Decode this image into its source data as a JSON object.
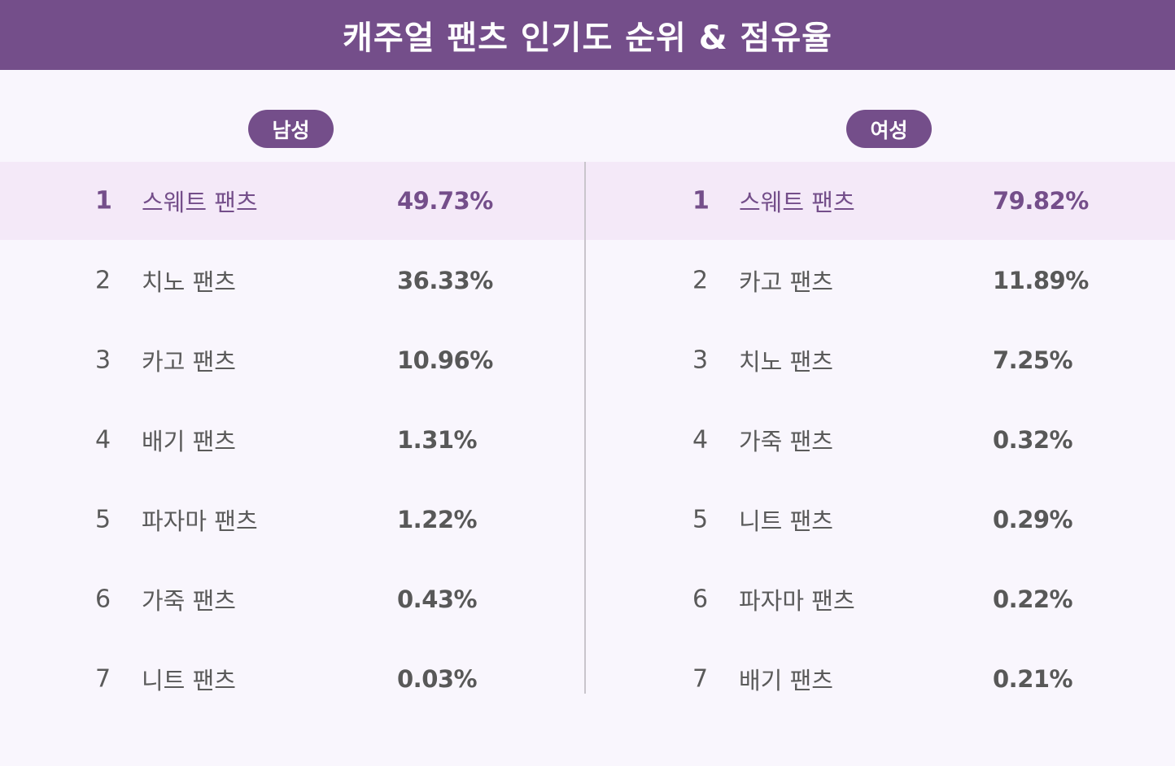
{
  "title": "캐주얼 팬츠 인기도 순위 & 점유율",
  "colors": {
    "header": "#744e8a",
    "highlight_row": "#f4e9f8",
    "background": "#f9f6fd",
    "text": "#5a5a5a"
  },
  "chart_data": [
    {
      "type": "table",
      "group": "남성",
      "columns": [
        "rank",
        "item",
        "share"
      ],
      "rows": [
        {
          "rank": "1",
          "item": "스웨트 팬츠",
          "share": "49.73%"
        },
        {
          "rank": "2",
          "item": "치노 팬츠",
          "share": "36.33%"
        },
        {
          "rank": "3",
          "item": "카고 팬츠",
          "share": "10.96%"
        },
        {
          "rank": "4",
          "item": "배기 팬츠",
          "share": "1.31%"
        },
        {
          "rank": "5",
          "item": "파자마 팬츠",
          "share": "1.22%"
        },
        {
          "rank": "6",
          "item": "가죽 팬츠",
          "share": "0.43%"
        },
        {
          "rank": "7",
          "item": "니트 팬츠",
          "share": "0.03%"
        }
      ]
    },
    {
      "type": "table",
      "group": "여성",
      "columns": [
        "rank",
        "item",
        "share"
      ],
      "rows": [
        {
          "rank": "1",
          "item": "스웨트 팬츠",
          "share": "79.82%"
        },
        {
          "rank": "2",
          "item": "카고 팬츠",
          "share": "11.89%"
        },
        {
          "rank": "3",
          "item": "치노 팬츠",
          "share": "7.25%"
        },
        {
          "rank": "4",
          "item": "가죽 팬츠",
          "share": "0.32%"
        },
        {
          "rank": "5",
          "item": "니트 팬츠",
          "share": "0.29%"
        },
        {
          "rank": "6",
          "item": "파자마 팬츠",
          "share": "0.22%"
        },
        {
          "rank": "7",
          "item": "배기 팬츠",
          "share": "0.21%"
        }
      ]
    }
  ]
}
